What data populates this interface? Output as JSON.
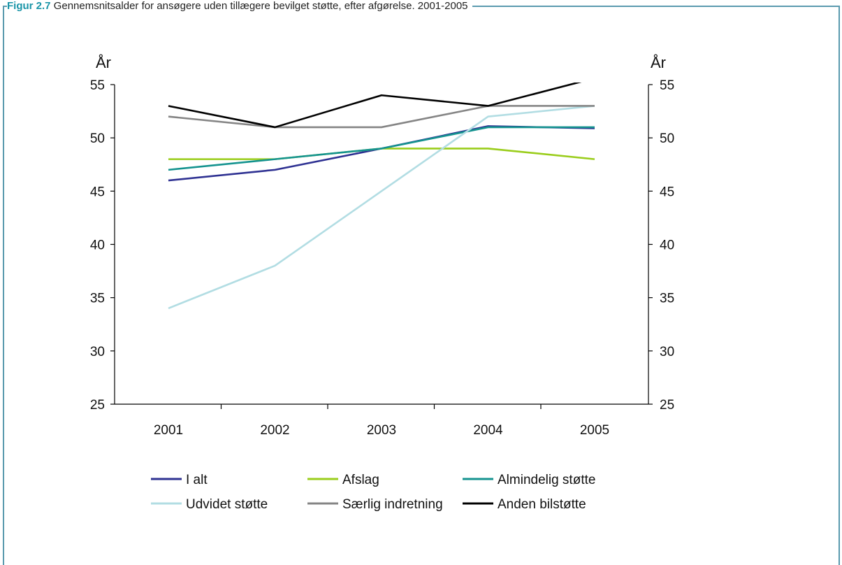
{
  "caption": {
    "figure_label": "Figur 2.7",
    "text": "Gennemsnitsalder for ansøgere uden tillægere bevilget støtte, efter afgørelse. 2001-2005"
  },
  "colors": {
    "frame": "#5a9aae",
    "caption_accent": "#1a95a8"
  },
  "chart_data": {
    "type": "line",
    "categories": [
      "2001",
      "2002",
      "2003",
      "2004",
      "2005"
    ],
    "ylabel_left": "År",
    "ylabel_right": "År",
    "ylim": [
      25,
      55
    ],
    "yticks": [
      25,
      30,
      35,
      40,
      45,
      50,
      55
    ],
    "grid": false,
    "legend_position": "bottom",
    "series": [
      {
        "name": "I alt",
        "color": "#2e3192",
        "values": [
          46,
          47,
          49,
          51.1,
          50.9
        ]
      },
      {
        "name": "Afslag",
        "color": "#9acd1b",
        "values": [
          48,
          48,
          49,
          49,
          48
        ]
      },
      {
        "name": "Almindelig støtte",
        "color": "#14938f",
        "values": [
          47,
          48,
          49,
          51,
          51
        ]
      },
      {
        "name": "Udvidet støtte",
        "color": "#b2dde3",
        "values": [
          34,
          38,
          45,
          52,
          53
        ]
      },
      {
        "name": "Særlig indretning",
        "color": "#858585",
        "values": [
          52,
          51,
          51,
          53,
          53
        ]
      },
      {
        "name": "Anden bilstøtte",
        "color": "#000000",
        "values": [
          53,
          51,
          54,
          53,
          55.6
        ]
      }
    ]
  }
}
